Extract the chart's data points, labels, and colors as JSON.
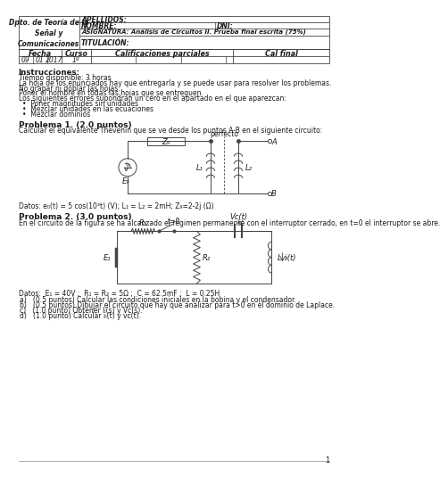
{
  "bg_color": "#ffffff",
  "page_bg": "#f0eeec",
  "header": {
    "dept": "Dpto. de Teoría de la\nSeñal y\nComunicaciones",
    "apellidos": "APELLIDOS:",
    "nombre": "NOMBRE:",
    "dni": "DNI:",
    "asignatura": "ASIGNATURA: Análisis de Circuitos II. Prueba final escrita (75%)",
    "titulacion": "TITULACIÓN:"
  },
  "fecha": [
    "09",
    "01",
    "2017"
  ],
  "curso": "1º",
  "instrucciones_title": "Instrucciones:",
  "instrucciones_lines": [
    "Tiempo disponible: 3 horas",
    "La hoja de los enunciados hay que entregarla y se puede usar para resolver los problemas.",
    "No grapar ni doblar las hojas.",
    "Poner el nombre en todas las hojas que se entreguen.",
    "Los siguientes errores supondrán un cero en el apartado en el que aparezcan:"
  ],
  "instrucciones_bullets": [
    "Poner magnitudes sin unidades",
    "Mezclar unidades en las ecuaciones",
    "Mezclar dominios"
  ],
  "p1_title": "Problema 1. (2.0 puntos)",
  "p1_text": "Calcular el equivalente Thevenin que se ve desde los puntos A-B en el siguiente circuito:",
  "p1_datos": "Datos: e₀(t) = 5 cos(10³t) (V); L₁ = L₂ = 2mH; Z₉=2-2j (Ω)",
  "p2_title": "Problema 2. (3.0 puntos)",
  "p2_text": "En el circuito de la figura se ha alcanzado el régimen permanente con el interruptor cerrado, en t=0 el interruptor se abre.",
  "p2_datos": "Datos:  E₁ = 40V ;  R₁ = R₂ = 5Ω ;  C = 62.5mF ;  L = 0.25H",
  "p2_subs": [
    "a)   (0.5 puntos) Calcular las condiciones iniciales en la bobina y el condensador.",
    "b)   (0.5 puntos) Dibujar el circuito que hay que analizar para t>0 en el dominio de Laplace.",
    "c)   (1.0 punto) Obtener Iₗ(s) y Vc(s).",
    "d)   (1.0 punto) Calcular iₗ(t) y vc(t)."
  ],
  "page_num": "1",
  "fc": "#1a1a1a",
  "lc": "#444444"
}
